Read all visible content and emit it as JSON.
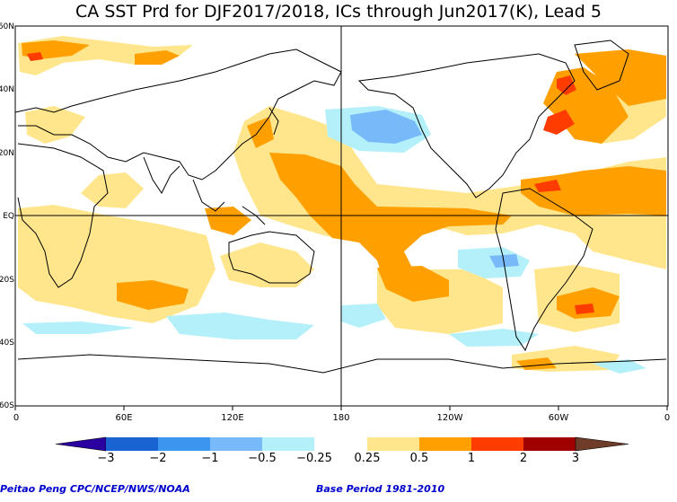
{
  "title": "CA SST Prd for DJF2017/2018, ICs through Jun2017(K), Lead 5",
  "lat_labels": [
    "60N",
    "40N",
    "20N",
    "EQ",
    "20S",
    "40S",
    "60S"
  ],
  "lon_labels": [
    "0",
    "60E",
    "120E",
    "180",
    "120W",
    "60W",
    "0"
  ],
  "colorbar": {
    "labels": [
      "−3",
      "−2",
      "−1",
      "−0.5",
      "−0.25",
      "0.25",
      "0.5",
      "1",
      "2",
      "3"
    ],
    "colors": [
      "#2a00a0",
      "#1a64d2",
      "#3c96f0",
      "#78b9fa",
      "#b4f0fa",
      "#ffffff",
      "#ffe68c",
      "#ffa000",
      "#ff3c00",
      "#a00000",
      "#6e3c28"
    ]
  },
  "footer": {
    "left": "Peitao Peng CPC/NCEP/NWS/NOAA",
    "right": "Base Period 1981-2010"
  }
}
